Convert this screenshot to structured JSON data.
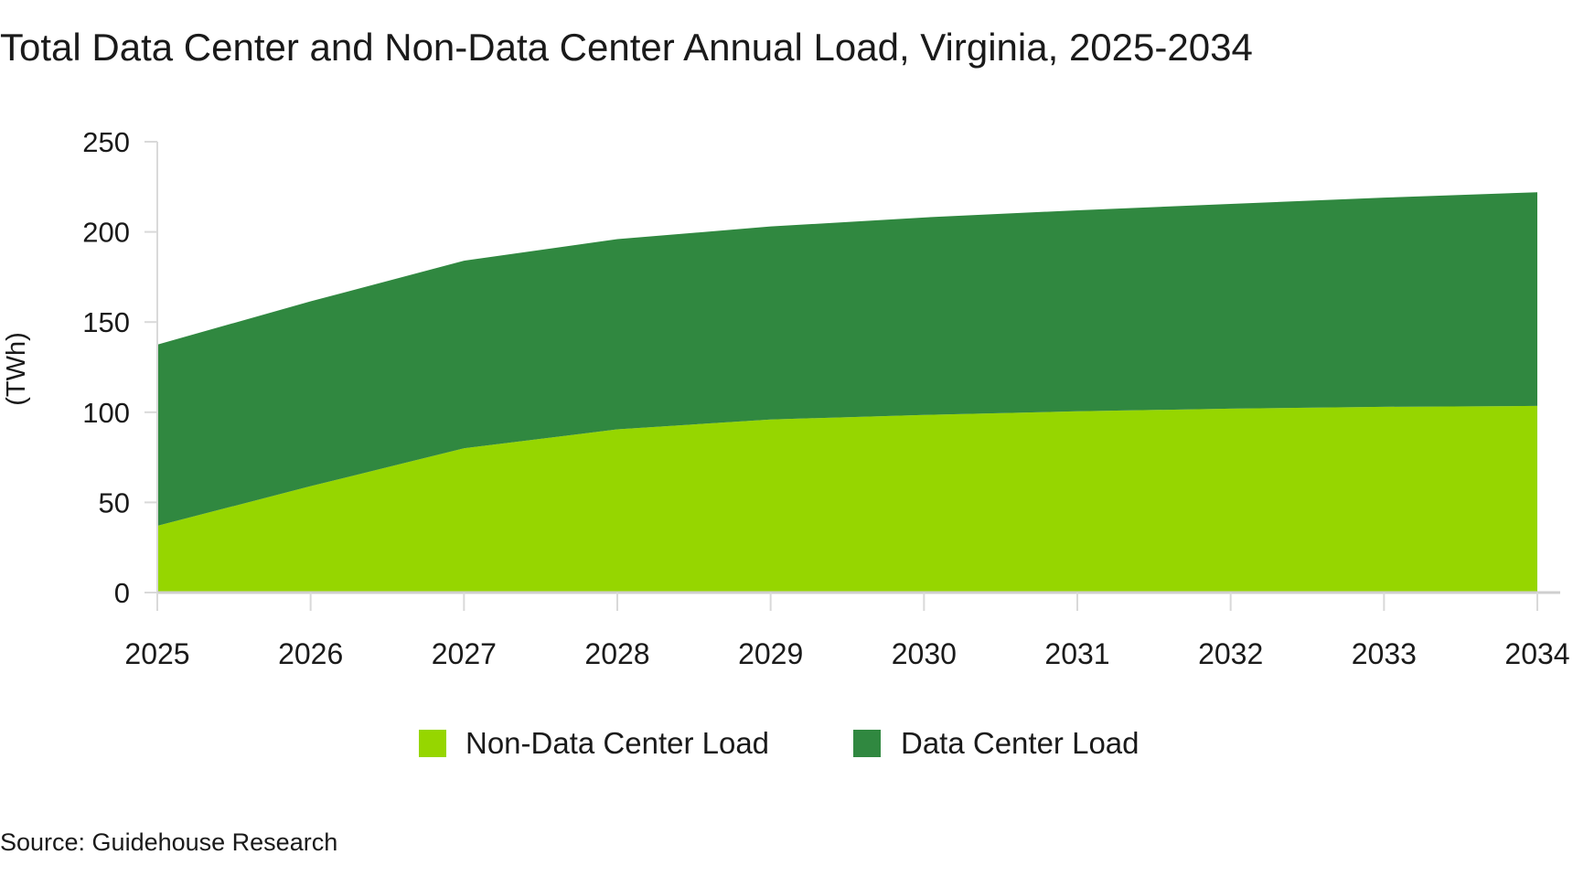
{
  "title": "Total Data Center and Non-Data Center Annual Load, Virginia, 2025-2034",
  "source": "Source: Guidehouse Research",
  "chart_data": {
    "type": "area",
    "stacked": true,
    "title": "Total Data Center and Non-Data Center Annual Load, Virginia, 2025-2034",
    "xlabel": "",
    "ylabel": "(TWh)",
    "x": [
      "2025",
      "2026",
      "2027",
      "2028",
      "2029",
      "2030",
      "2031",
      "2032",
      "2033",
      "2034"
    ],
    "ylim": [
      0,
      250
    ],
    "yticks": [
      0,
      50,
      100,
      150,
      200,
      250
    ],
    "grid": false,
    "legend_position": "bottom",
    "series": [
      {
        "name": "Non-Data Center Load",
        "color": "#96d600",
        "values": [
          37,
          59,
          80,
          90.5,
          96,
          98.5,
          100.5,
          102,
          103,
          103.5
        ]
      },
      {
        "name": "Data Center Load",
        "color": "#308840",
        "values": [
          100.5,
          102.5,
          104,
          105.5,
          107,
          109.5,
          111.5,
          113.5,
          116,
          118.5
        ]
      }
    ]
  }
}
